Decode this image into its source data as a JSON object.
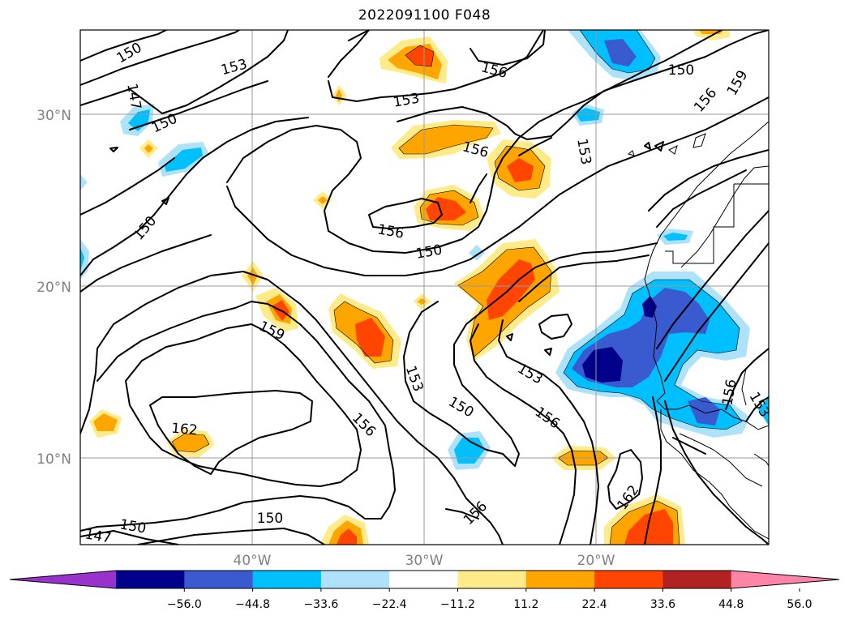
{
  "title": "2022091100 F048",
  "axes": {
    "lat_labels": [
      "30°N",
      "20°N",
      "10°N"
    ],
    "lon_labels": [
      "40°W",
      "30°W",
      "20°W"
    ]
  },
  "colorbar": {
    "tick_labels": [
      "−56.0",
      "−44.8",
      "−33.6",
      "−22.4",
      "−11.2",
      "11.2",
      "22.4",
      "33.6",
      "44.8",
      "56.0"
    ],
    "colors": [
      "#9932CC",
      "#00008B",
      "#3A5BCF",
      "#00BFFF",
      "#AEE2FA",
      "#FFFFFF",
      "#FFEB8A",
      "#FFA500",
      "#FF4500",
      "#B22222",
      "#FF85A8"
    ]
  },
  "contour_labels": [
    "150",
    "153",
    "156",
    "147",
    "150",
    "153",
    "156",
    "150",
    "156",
    "159",
    "150",
    "153",
    "156",
    "150",
    "153",
    "159",
    "150",
    "153",
    "159",
    "156",
    "162",
    "156",
    "162",
    "150",
    "147",
    "156",
    "156",
    "153",
    "150"
  ]
}
